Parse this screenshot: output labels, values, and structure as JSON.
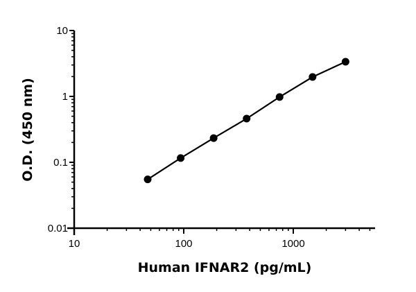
{
  "chart_data": {
    "type": "line",
    "title": "",
    "xlabel": "Human IFNAR2 (pg/mL)",
    "ylabel": "O.D. (450 nm)",
    "xscale": "log",
    "yscale": "log",
    "xlim": [
      10,
      5000
    ],
    "ylim": [
      0.01,
      10
    ],
    "x_ticks": [
      "10",
      "100",
      "1000"
    ],
    "y_ticks": [
      "0.01",
      "0.1",
      "1",
      "10"
    ],
    "grid": false,
    "legend": null,
    "series": [
      {
        "name": "Human IFNAR2",
        "marker": "filled-circle",
        "color": "#000000",
        "x": [
          46.875,
          93.75,
          187.5,
          375,
          750,
          1500,
          3000
        ],
        "y": [
          0.055,
          0.116,
          0.233,
          0.46,
          0.98,
          1.97,
          3.36
        ]
      }
    ]
  }
}
